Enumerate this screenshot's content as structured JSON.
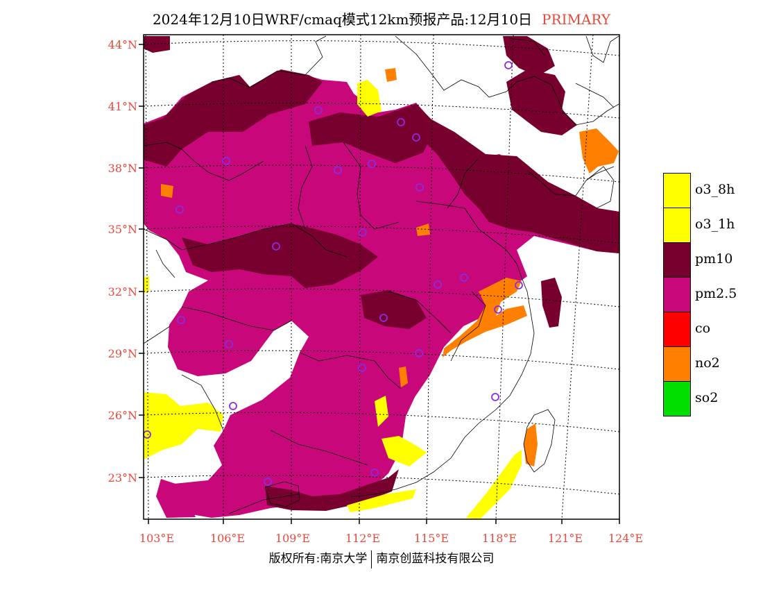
{
  "header": {
    "title": "2024年12月10日WRF/cmaq模式12km预报产品:12月10日",
    "tag": "PRIMARY"
  },
  "map": {
    "lat_labels": [
      "44°N",
      "41°N",
      "38°N",
      "35°N",
      "32°N",
      "29°N",
      "26°N",
      "23°N"
    ],
    "lon_labels": [
      "103°E",
      "106°E",
      "109°E",
      "112°E",
      "115°E",
      "118°E",
      "121°E",
      "124°E"
    ],
    "extent": {
      "lon_min": 102.9,
      "lon_max": 124.0,
      "lat_min": 21.0,
      "lat_max": 44.4
    },
    "colors": {
      "pm25": "#c8087a",
      "pm10": "#78002f",
      "no2": "#ff8000",
      "o3": "#ffff00",
      "so2": "#00e000",
      "co": "#ff0000",
      "station": "#8a2be2",
      "boundary": "#000000"
    }
  },
  "legend": {
    "items": [
      {
        "label": "o3_8h",
        "color": "#ffff00"
      },
      {
        "label": "o3_1h",
        "color": "#ffff00"
      },
      {
        "label": "pm10",
        "color": "#78002f"
      },
      {
        "label": "pm2.5",
        "color": "#c8087a"
      },
      {
        "label": "co",
        "color": "#ff0000"
      },
      {
        "label": "no2",
        "color": "#ff8000"
      },
      {
        "label": "so2",
        "color": "#00e000"
      }
    ]
  },
  "footer": {
    "left": "版权所有:南京大学",
    "right": "南京创蓝科技有限公司"
  }
}
